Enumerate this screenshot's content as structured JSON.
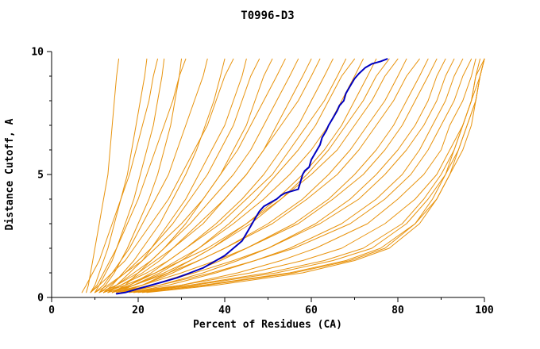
{
  "chart_data": {
    "type": "line",
    "title": "T0996-D3",
    "xlabel": "Percent of Residues (CA)",
    "ylabel": "Distance Cutoff, A",
    "xlim": [
      0,
      100
    ],
    "ylim": [
      0,
      10
    ],
    "xticks": [
      0,
      20,
      40,
      60,
      80,
      100
    ],
    "yticks": [
      0,
      5,
      10
    ],
    "x_minor_ticks": [
      10,
      30,
      50,
      70,
      90
    ],
    "y_minor_ticks": [
      1,
      2,
      3,
      4,
      6,
      7,
      8,
      9
    ],
    "grid": "off",
    "legend": "none",
    "axis_color": "#000000",
    "model_color": "#e8930d",
    "highlight_color": "#0000c0",
    "y_samples": [
      0.2,
      0.5,
      1,
      1.5,
      2,
      3,
      4,
      5,
      6,
      7,
      8,
      9,
      9.7
    ],
    "models": [
      {
        "x": [
          8,
          8.5,
          9,
          9.5,
          10,
          11,
          12,
          13,
          13.5,
          14,
          14.5,
          15,
          15.5
        ]
      },
      {
        "x": [
          9,
          10,
          11,
          12,
          13,
          14.5,
          16,
          17.5,
          18.5,
          19.5,
          20.5,
          21.5,
          22
        ]
      },
      {
        "x": [
          10,
          11,
          12.5,
          14,
          15,
          17,
          19,
          20.5,
          22,
          23.5,
          24.5,
          25.5,
          26
        ]
      },
      {
        "x": [
          7,
          8,
          9.5,
          11,
          12,
          14,
          16,
          18,
          19.5,
          21,
          22.5,
          23.5,
          24.5
        ]
      },
      {
        "x": [
          11,
          12.5,
          14.5,
          16,
          17.5,
          20,
          22.5,
          24.5,
          26,
          27.5,
          28.5,
          29.5,
          30
        ]
      },
      {
        "x": [
          9,
          10.5,
          12,
          13.5,
          15,
          17.5,
          20,
          22,
          24,
          26,
          28,
          29.5,
          31
        ]
      },
      {
        "x": [
          10,
          12,
          14,
          16,
          18,
          21,
          24,
          27,
          29,
          31,
          33,
          35,
          36
        ]
      },
      {
        "x": [
          12,
          14,
          16.5,
          19,
          21,
          25,
          28,
          31,
          33.5,
          35.5,
          37.5,
          39,
          40
        ]
      },
      {
        "x": [
          9,
          11,
          14,
          17,
          19,
          23,
          27,
          30,
          33,
          36,
          38,
          40,
          42
        ]
      },
      {
        "x": [
          13,
          15,
          18,
          21,
          23,
          27,
          31,
          34,
          37,
          40,
          42,
          44,
          45
        ]
      },
      {
        "x": [
          11,
          13.5,
          17,
          20,
          23,
          28,
          32,
          36,
          39,
          42,
          44,
          46,
          48
        ]
      },
      {
        "x": [
          14,
          17,
          20,
          23,
          26,
          31,
          35,
          39,
          42,
          45,
          47,
          49,
          51
        ]
      },
      {
        "x": [
          10,
          13,
          17,
          21,
          24,
          30,
          35,
          39,
          43,
          46,
          49,
          52,
          54
        ]
      },
      {
        "x": [
          12,
          15,
          19,
          23,
          26,
          32,
          37,
          42,
          46,
          49,
          52,
          55,
          57
        ]
      },
      {
        "x": [
          13,
          16,
          21,
          25,
          28,
          35,
          40,
          45,
          49,
          52,
          55,
          58,
          60
        ]
      },
      {
        "x": [
          11,
          15,
          20,
          24,
          28,
          34,
          40,
          45,
          49,
          53,
          57,
          60,
          62
        ]
      },
      {
        "x": [
          14,
          18,
          23,
          27,
          31,
          38,
          44,
          49,
          53,
          57,
          60,
          63,
          65
        ]
      },
      {
        "x": [
          12,
          16,
          22,
          27,
          31,
          39,
          45,
          51,
          55,
          59,
          63,
          66,
          68
        ]
      },
      {
        "x": [
          15,
          19,
          25,
          30,
          34,
          41,
          47,
          52,
          57,
          61,
          64,
          67,
          70
        ]
      },
      {
        "x": [
          13,
          18,
          24,
          29,
          34,
          42,
          49,
          55,
          60,
          64,
          67,
          70,
          72
        ]
      },
      {
        "x": [
          16,
          21,
          27,
          32,
          37,
          45,
          52,
          58,
          63,
          67,
          70,
          73,
          75
        ]
      },
      {
        "x": [
          14,
          19,
          26,
          32,
          37,
          46,
          53,
          59,
          64,
          68,
          72,
          75,
          78
        ]
      },
      {
        "x": [
          12,
          17,
          24,
          30,
          36,
          45,
          53,
          60,
          66,
          70,
          74,
          77,
          80
        ]
      },
      {
        "x": [
          15,
          21,
          28,
          34,
          40,
          50,
          58,
          64,
          69,
          73,
          77,
          80,
          82
        ]
      },
      {
        "x": [
          13,
          19,
          27,
          34,
          40,
          51,
          59,
          66,
          71,
          75,
          79,
          82,
          85
        ]
      },
      {
        "x": [
          16,
          23,
          32,
          39,
          45,
          56,
          64,
          70,
          75,
          79,
          82,
          85,
          87
        ]
      },
      {
        "x": [
          14,
          21,
          30,
          38,
          45,
          57,
          65,
          72,
          77,
          81,
          84,
          87,
          89
        ]
      },
      {
        "x": [
          17,
          25,
          35,
          43,
          50,
          61,
          69,
          75,
          80,
          84,
          87,
          89,
          91
        ]
      },
      {
        "x": [
          15,
          23,
          33,
          42,
          50,
          62,
          71,
          77,
          82,
          86,
          89,
          91,
          93
        ]
      },
      {
        "x": [
          18,
          27,
          38,
          47,
          55,
          67,
          75,
          81,
          85,
          88,
          91,
          93,
          95
        ]
      },
      {
        "x": [
          16,
          25,
          37,
          47,
          56,
          69,
          77,
          83,
          87,
          90,
          93,
          95,
          97
        ]
      },
      {
        "x": [
          19,
          30,
          43,
          53,
          61,
          73,
          80,
          86,
          90,
          92,
          95,
          97,
          98
        ]
      },
      {
        "x": [
          20,
          35,
          55,
          68,
          76,
          84,
          88,
          91,
          93,
          95,
          97,
          98,
          99
        ]
      },
      {
        "x": [
          18,
          32,
          50,
          63,
          72,
          81,
          86,
          90,
          93,
          95,
          97,
          98,
          100
        ]
      },
      {
        "x": [
          22,
          38,
          58,
          70,
          78,
          85,
          89,
          92,
          94,
          96,
          98,
          99,
          100
        ]
      },
      {
        "x": [
          17,
          30,
          46,
          58,
          67,
          77,
          84,
          89,
          92,
          95,
          97,
          99,
          100
        ]
      },
      {
        "x": [
          21,
          36,
          56,
          69,
          77,
          84,
          89,
          92,
          95,
          97,
          98,
          99,
          100
        ]
      },
      {
        "x": [
          19,
          33,
          52,
          65,
          74,
          82,
          87,
          91,
          94,
          96,
          98,
          99,
          100
        ]
      }
    ],
    "highlight": {
      "name": "highlighted-model",
      "points": [
        [
          15,
          0.15
        ],
        [
          17,
          0.2
        ],
        [
          20,
          0.35
        ],
        [
          23,
          0.5
        ],
        [
          26,
          0.65
        ],
        [
          29,
          0.8
        ],
        [
          32,
          1.0
        ],
        [
          35,
          1.2
        ],
        [
          38,
          1.5
        ],
        [
          40,
          1.7
        ],
        [
          42,
          2.0
        ],
        [
          44,
          2.3
        ],
        [
          45,
          2.6
        ],
        [
          46,
          2.9
        ],
        [
          47,
          3.2
        ],
        [
          48,
          3.5
        ],
        [
          49,
          3.7
        ],
        [
          51,
          3.9
        ],
        [
          52,
          4.0
        ],
        [
          53,
          4.15
        ],
        [
          54,
          4.25
        ],
        [
          56,
          4.35
        ],
        [
          57,
          4.4
        ],
        [
          57.5,
          4.7
        ],
        [
          58,
          5.0
        ],
        [
          58.5,
          5.15
        ],
        [
          59.5,
          5.3
        ],
        [
          60,
          5.6
        ],
        [
          61,
          5.9
        ],
        [
          62,
          6.2
        ],
        [
          62.5,
          6.5
        ],
        [
          63.5,
          6.8
        ],
        [
          64,
          7.0
        ],
        [
          65,
          7.3
        ],
        [
          66,
          7.6
        ],
        [
          66.5,
          7.8
        ],
        [
          67.5,
          8.0
        ],
        [
          68,
          8.3
        ],
        [
          69,
          8.6
        ],
        [
          70,
          8.9
        ],
        [
          71,
          9.1
        ],
        [
          72.5,
          9.35
        ],
        [
          74,
          9.5
        ],
        [
          76,
          9.6
        ],
        [
          77.5,
          9.7
        ]
      ]
    }
  }
}
